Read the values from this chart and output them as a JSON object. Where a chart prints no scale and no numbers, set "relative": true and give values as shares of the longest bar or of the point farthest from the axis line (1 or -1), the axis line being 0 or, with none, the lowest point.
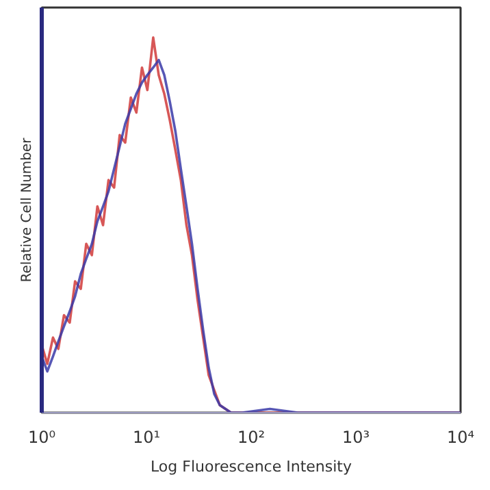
{
  "chart_data": {
    "type": "line",
    "relative": true,
    "log": "x",
    "xlabel": "Log Fluorescence Intensity",
    "ylabel": "Relative Cell Number",
    "xlim": [
      1,
      10000
    ],
    "xticks": [
      {
        "value": 1,
        "label": "10⁰"
      },
      {
        "value": 10,
        "label": "10¹"
      },
      {
        "value": 100,
        "label": "10²"
      },
      {
        "value": 1000,
        "label": "10³"
      },
      {
        "value": 10000,
        "label": "10⁴"
      }
    ],
    "tick_labels": "x",
    "grid": false,
    "x": [
      1,
      1.13,
      1.28,
      1.44,
      1.63,
      1.85,
      2.08,
      2.36,
      2.66,
      3.01,
      3.4,
      3.85,
      4.34,
      4.91,
      5.55,
      6.27,
      7.09,
      8.01,
      9.06,
      10.2,
      11.6,
      13.1,
      14.8,
      16.7,
      18.9,
      21.3,
      24.1,
      27.2,
      30.8,
      34.8,
      39.3,
      44.4,
      50.2,
      56.8,
      64.2,
      82,
      151,
      279,
      10000
    ],
    "series": [
      {
        "color": "#d03a3a",
        "values": [
          0.18,
          0.13,
          0.2,
          0.17,
          0.26,
          0.24,
          0.35,
          0.33,
          0.45,
          0.42,
          0.55,
          0.5,
          0.62,
          0.6,
          0.74,
          0.72,
          0.84,
          0.8,
          0.92,
          0.86,
          1.0,
          0.9,
          0.85,
          0.78,
          0.7,
          0.62,
          0.5,
          0.42,
          0.3,
          0.2,
          0.1,
          0.06,
          0.02,
          0.01,
          0,
          0,
          0,
          0,
          0
        ]
      },
      {
        "color": "#3a3aa8",
        "values": [
          0.15,
          0.11,
          0.15,
          0.19,
          0.23,
          0.27,
          0.31,
          0.37,
          0.41,
          0.45,
          0.51,
          0.55,
          0.59,
          0.65,
          0.71,
          0.77,
          0.81,
          0.85,
          0.88,
          0.9,
          0.92,
          0.94,
          0.9,
          0.83,
          0.75,
          0.65,
          0.55,
          0.45,
          0.33,
          0.22,
          0.12,
          0.05,
          0.02,
          0.01,
          0,
          0,
          0.01,
          0,
          0
        ]
      }
    ]
  }
}
